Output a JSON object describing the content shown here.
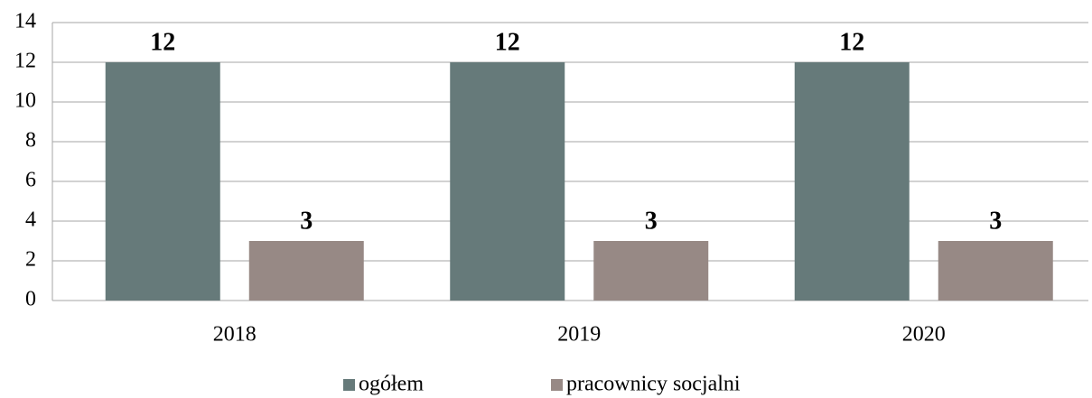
{
  "chart_data": {
    "type": "bar",
    "categories": [
      "2018",
      "2019",
      "2020"
    ],
    "series": [
      {
        "name": "ogółem",
        "color": "#667a7a",
        "values": [
          12,
          12,
          12
        ]
      },
      {
        "name": "pracownicy socjalni",
        "color": "#978985",
        "values": [
          3,
          3,
          3
        ]
      }
    ],
    "ylim": [
      0,
      14
    ],
    "yticks": [
      0,
      2,
      4,
      6,
      8,
      10,
      12,
      14
    ],
    "grid": true,
    "legend": "bottom"
  }
}
